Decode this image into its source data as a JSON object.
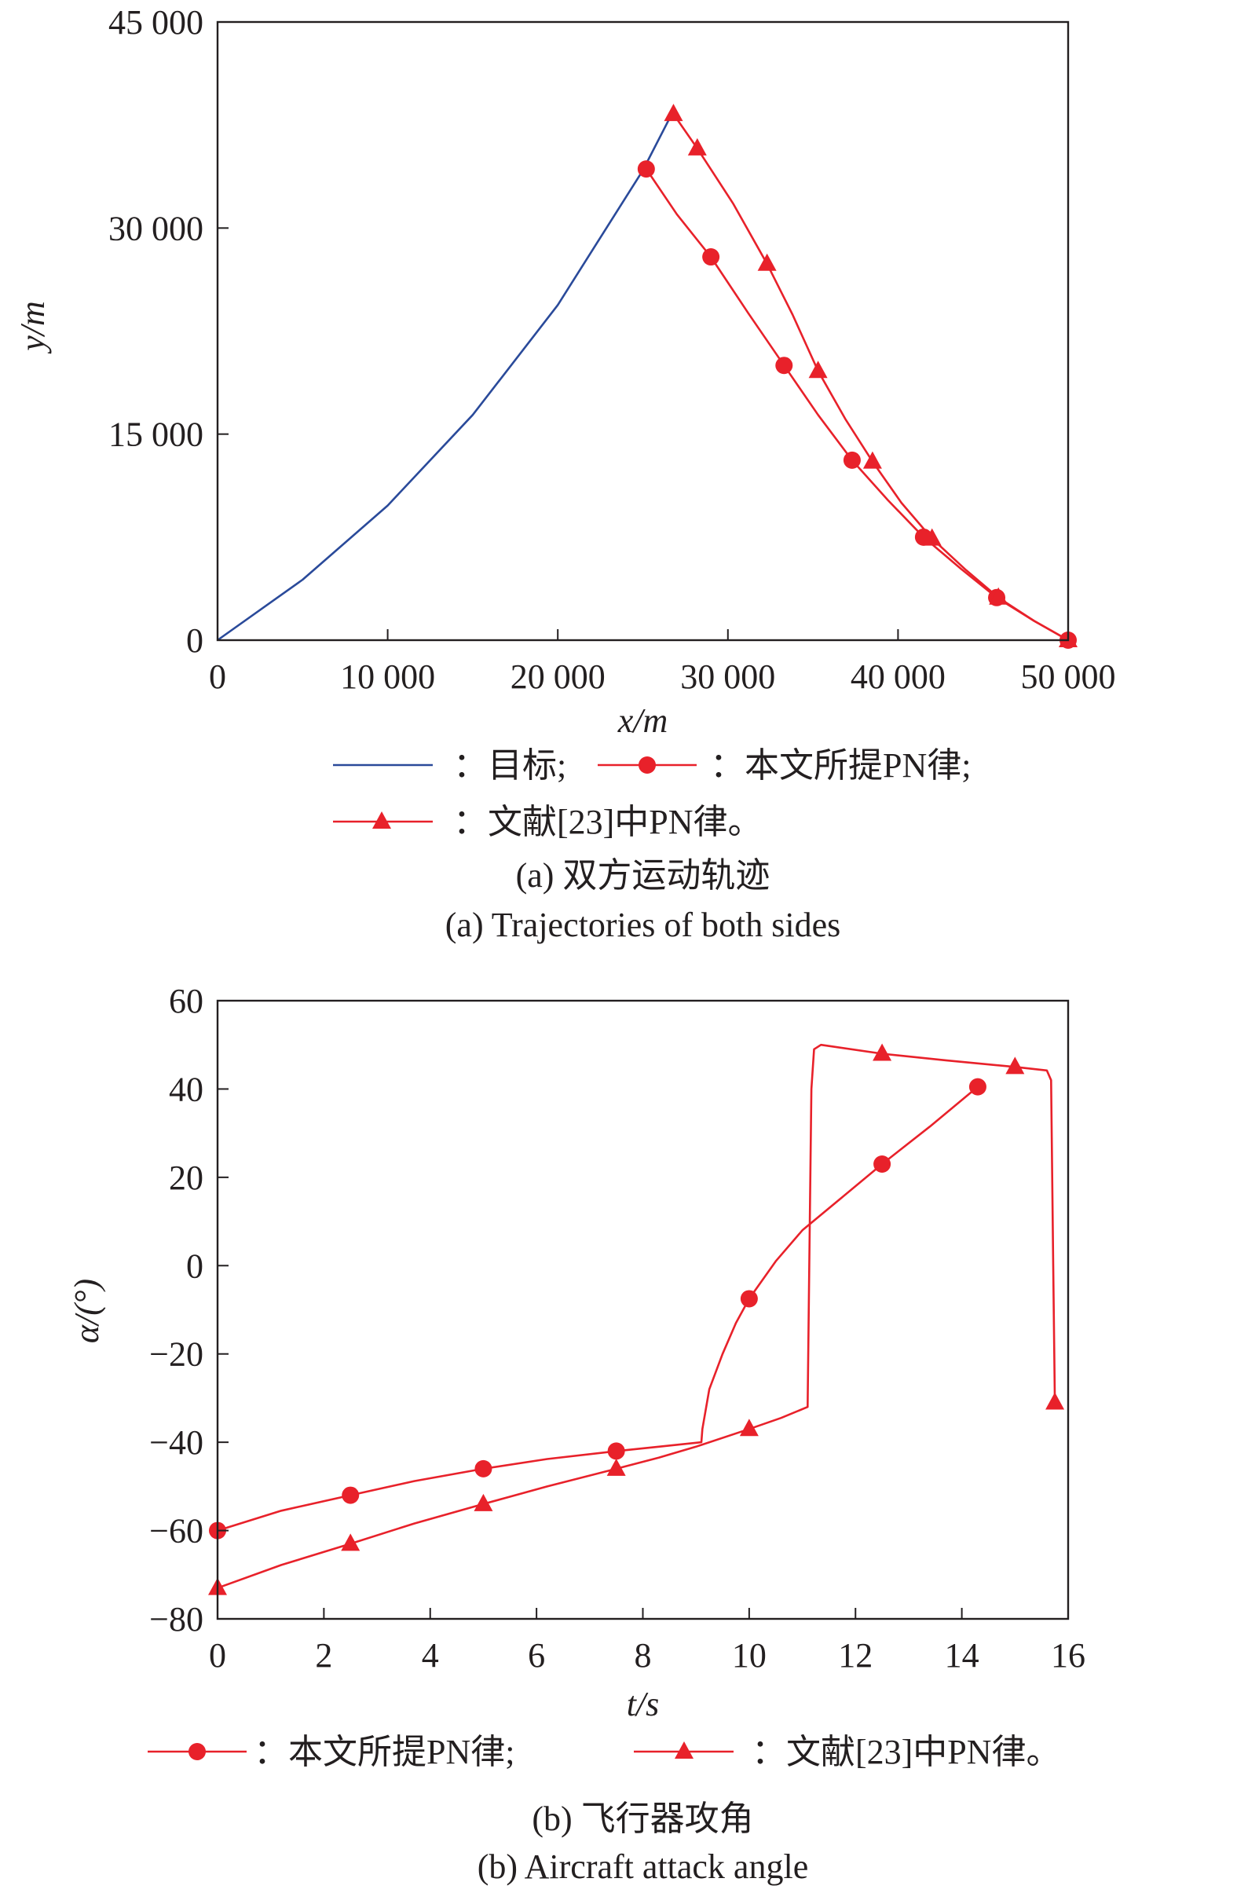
{
  "colors": {
    "target": "#2a4a9a",
    "red": "#e8212a",
    "axis": "#231f20"
  },
  "chart_data": [
    {
      "type": "line",
      "xlabel": "x/m",
      "ylabel": "y/m",
      "xlim": [
        0,
        50000
      ],
      "ylim": [
        0,
        45000
      ],
      "xticks": [
        0,
        10000,
        20000,
        30000,
        40000,
        50000
      ],
      "xtick_labels": [
        "0",
        "10 000",
        "20 000",
        "30 000",
        "40 000",
        "50 000"
      ],
      "yticks": [
        0,
        15000,
        30000,
        45000
      ],
      "ytick_labels": [
        "0",
        "15 000",
        "30 000",
        "45 000"
      ],
      "grid": false,
      "legend_placement": "bottom",
      "caption_cn": "(a) 双方运动轨迹",
      "caption_en": "(a) Trajectories of both sides",
      "series": [
        {
          "name": "：目标;",
          "color": "#2a4a9a",
          "marker": "none",
          "x": [
            0,
            5000,
            10000,
            15000,
            20000,
            25000,
            26700
          ],
          "y": [
            0,
            4400,
            9800,
            16400,
            24400,
            34200,
            38300
          ],
          "markers": []
        },
        {
          "name": "：本文所提PN律;",
          "color": "#e8212a",
          "marker": "circle",
          "x": [
            25200,
            27000,
            29000,
            31200,
            33300,
            35300,
            37300,
            39400,
            41500,
            43700,
            45800,
            48000,
            50000
          ],
          "y": [
            34300,
            31000,
            27900,
            23800,
            20000,
            16400,
            13100,
            10200,
            7500,
            5200,
            3100,
            1400,
            0
          ],
          "markers": [
            [
              25200,
              34300
            ],
            [
              29000,
              27900
            ],
            [
              33300,
              20000
            ],
            [
              37300,
              13100
            ],
            [
              41500,
              7500
            ],
            [
              45800,
              3100
            ],
            [
              50000,
              0
            ]
          ]
        },
        {
          "name": "：文献[23]中PN律。",
          "color": "#e8212a",
          "marker": "triangle",
          "x": [
            26800,
            28200,
            30300,
            32300,
            33800,
            35300,
            36900,
            38500,
            40200,
            42000,
            44000,
            45900,
            48000,
            50000
          ],
          "y": [
            38300,
            35800,
            31800,
            27400,
            23700,
            19600,
            16100,
            13000,
            10000,
            7400,
            5100,
            3100,
            1400,
            0
          ],
          "markers": [
            [
              26800,
              38300
            ],
            [
              28200,
              35800
            ],
            [
              32300,
              27400
            ],
            [
              35300,
              19600
            ],
            [
              38500,
              13000
            ],
            [
              42000,
              7400
            ],
            [
              45900,
              3100
            ],
            [
              50000,
              0
            ]
          ]
        }
      ]
    },
    {
      "type": "line",
      "xlabel": "t/s",
      "ylabel": "α/(°)",
      "xlim": [
        0,
        16
      ],
      "ylim": [
        -80,
        60
      ],
      "xticks": [
        0,
        2,
        4,
        6,
        8,
        10,
        12,
        14,
        16
      ],
      "xtick_labels": [
        "0",
        "2",
        "4",
        "6",
        "8",
        "10",
        "12",
        "14",
        "16"
      ],
      "yticks": [
        -80,
        -60,
        -40,
        -20,
        0,
        20,
        40,
        60
      ],
      "ytick_labels": [
        "−80",
        "−60",
        "−40",
        "−20",
        "0",
        "20",
        "40",
        "60"
      ],
      "grid": false,
      "legend_placement": "bottom",
      "caption_cn": "(b) 飞行器攻角",
      "caption_en": "(b) Aircraft attack angle",
      "series": [
        {
          "name": "：本文所提PN律;",
          "color": "#e8212a",
          "marker": "circle",
          "x": [
            0,
            1.2,
            2.5,
            3.7,
            5,
            6.2,
            7.5,
            8.3,
            9.1,
            9.12,
            9.25,
            9.5,
            9.75,
            10,
            10.5,
            11,
            11.75,
            12.5,
            13.4,
            14.3
          ],
          "y": [
            -60,
            -55.5,
            -52,
            -48.8,
            -46,
            -43.8,
            -42,
            -41,
            -40,
            -37,
            -28,
            -20,
            -13,
            -7.5,
            1,
            8,
            15.5,
            23,
            31.5,
            40.5
          ],
          "markers": [
            [
              0,
              -60
            ],
            [
              2.5,
              -52
            ],
            [
              5,
              -46
            ],
            [
              7.5,
              -42
            ],
            [
              10,
              -7.5
            ],
            [
              12.5,
              23
            ],
            [
              14.3,
              40.5
            ]
          ]
        },
        {
          "name": "：文献[23]中PN律。",
          "color": "#e8212a",
          "marker": "triangle",
          "x": [
            0,
            1.2,
            2.5,
            3.7,
            5,
            6.2,
            7.5,
            8.3,
            9,
            10,
            10.6,
            11.1,
            11.13,
            11.17,
            11.22,
            11.35,
            12.5,
            13.7,
            15,
            15.6,
            15.68,
            15.72,
            15.75
          ],
          "y": [
            -73,
            -67.8,
            -63,
            -58.4,
            -54,
            -50,
            -46,
            -43.5,
            -41,
            -37,
            -34.5,
            -32,
            0,
            40,
            49,
            50,
            48,
            46.5,
            45,
            44.2,
            42,
            0,
            -31
          ],
          "markers": [
            [
              0,
              -73
            ],
            [
              2.5,
              -63
            ],
            [
              5,
              -54
            ],
            [
              7.5,
              -46
            ],
            [
              10,
              -37
            ],
            [
              12.5,
              48
            ],
            [
              15,
              45
            ],
            [
              15.75,
              -31
            ]
          ]
        }
      ]
    }
  ]
}
